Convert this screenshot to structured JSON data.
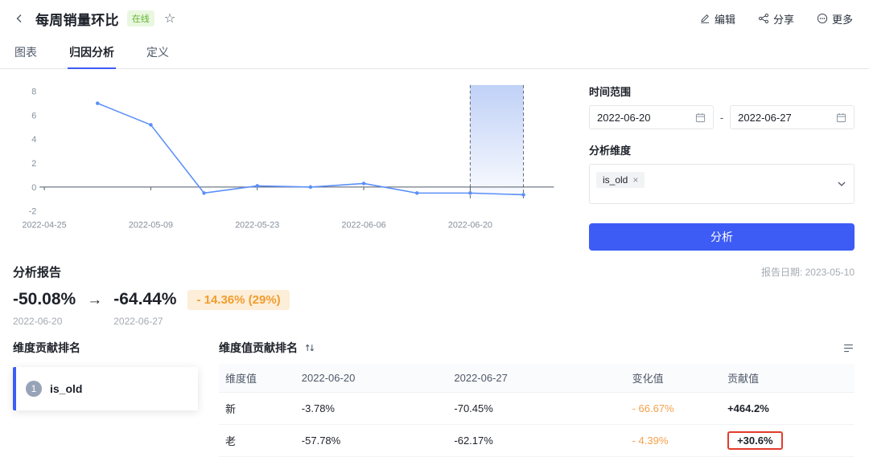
{
  "header": {
    "title": "每周销量环比",
    "status_badge": "在线",
    "actions": {
      "edit": "编辑",
      "share": "分享",
      "more": "更多"
    }
  },
  "icons": {
    "back": "chevron-left",
    "favorite": "☆",
    "edit": "pencil",
    "share": "share-nodes",
    "more": "circle-ellipsis",
    "calendar": "calendar",
    "select_chevron": "chevron-down",
    "tag_close": "×",
    "trend_arrow": "→",
    "sort": "sort-arrows",
    "report": "list-lines"
  },
  "tabs": [
    {
      "label": "图表",
      "active": false
    },
    {
      "label": "归因分析",
      "active": true
    },
    {
      "label": "定义",
      "active": false
    }
  ],
  "chart_data": {
    "type": "line",
    "title": "",
    "x": [
      "2022-05-02",
      "2022-05-09",
      "2022-05-16",
      "2022-05-23",
      "2022-05-30",
      "2022-06-06",
      "2022-06-13",
      "2022-06-20",
      "2022-06-27"
    ],
    "values": [
      7.0,
      5.2,
      -0.5,
      0.1,
      0.0,
      0.3,
      -0.5,
      -0.5,
      -0.64
    ],
    "x_domain": [
      "2022-04-25",
      "2022-07-01"
    ],
    "x_ticks": [
      "2022-04-25",
      "2022-05-09",
      "2022-05-23",
      "2022-06-06",
      "2022-06-20"
    ],
    "y_ticks": [
      8,
      6,
      4,
      2,
      0,
      -2
    ],
    "ylim": [
      -2,
      8
    ],
    "grid": false,
    "legend": "none",
    "highlight_range": [
      "2022-06-20",
      "2022-06-27"
    ],
    "line_color": "#5B8FF9",
    "highlight_color": "#B9CCF6"
  },
  "config_panel": {
    "time_range_label": "时间范围",
    "date_start": "2022-06-20",
    "date_separator": "-",
    "date_end": "2022-06-27",
    "dimension_label": "分析维度",
    "dimension_tag": "is_old",
    "analyze_button": "分析"
  },
  "report": {
    "title": "分析报告",
    "date_label": "报告日期: 2023-05-10",
    "value_before": "-50.08%",
    "value_after": "-64.44%",
    "change_badge": "- 14.36% (29%)",
    "date_before": "2022-06-20",
    "date_after": "2022-06-27"
  },
  "dimension_ranking": {
    "title": "维度贡献排名",
    "items": [
      {
        "rank": "1",
        "name": "is_old"
      }
    ]
  },
  "value_ranking": {
    "title": "维度值贡献排名",
    "columns": [
      "维度值",
      "2022-06-20",
      "2022-06-27",
      "变化值",
      "贡献值"
    ],
    "rows": [
      {
        "dim": "新",
        "before": "-3.78%",
        "after": "-70.45%",
        "change": "- 66.67%",
        "contribution": "+464.2%",
        "highlighted": false
      },
      {
        "dim": "老",
        "before": "-57.78%",
        "after": "-62.17%",
        "change": "- 4.39%",
        "contribution": "+30.6%",
        "highlighted": true
      }
    ]
  },
  "colors": {
    "accent_blue": "#3D5CF5",
    "line_blue": "#5B8FF9",
    "orange_text": "#F5A14B",
    "orange_badge_bg": "#FCEED8",
    "green_badge_bg": "#E9F7E0",
    "green_badge_text": "#62B42E",
    "annotation_red": "#E23B2B"
  }
}
